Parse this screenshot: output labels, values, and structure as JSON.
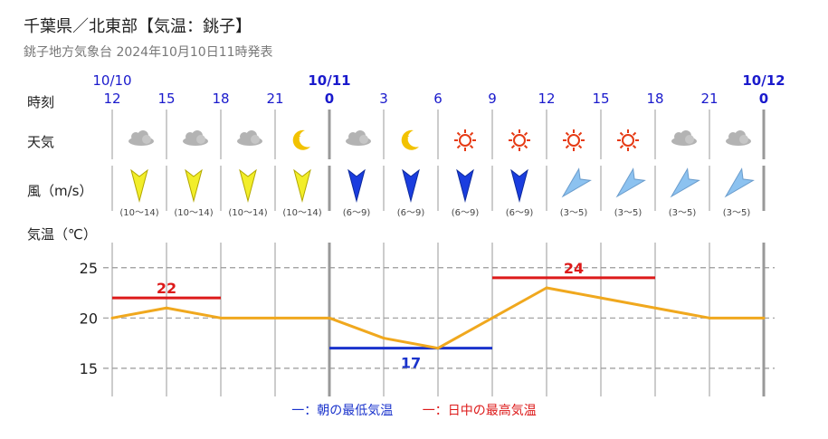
{
  "header": {
    "title": "千葉県／北東部【気温：銚子】",
    "subtitle": "銚子地方気象台 2024年10月10日11時発表"
  },
  "row_labels": {
    "time": "時刻",
    "weather": "天気",
    "wind": "風（m/s）",
    "temperature": "気温（℃）"
  },
  "dates": [
    {
      "label": "10/10",
      "bold": false,
      "slot": 0
    },
    {
      "label": "10/11",
      "bold": true,
      "slot": 4
    },
    {
      "label": "10/12",
      "bold": true,
      "slot": 12
    }
  ],
  "forecast": {
    "hours": [
      "12",
      "15",
      "18",
      "21",
      "0",
      "3",
      "6",
      "9",
      "12",
      "15",
      "18",
      "21",
      "0"
    ],
    "midnight_slots": [
      4,
      12
    ],
    "weather_icons": [
      "cloudy-icon",
      "cloudy-icon",
      "cloudy-icon",
      "clear-night-icon",
      "cloudy-icon",
      "clear-night-icon",
      "sunny-icon",
      "sunny-icon",
      "sunny-icon",
      "sunny-icon",
      "cloudy-icon",
      "cloudy-icon"
    ],
    "wind": [
      {
        "range": "(10〜14)",
        "direction": "north",
        "strength": 2
      },
      {
        "range": "(10〜14)",
        "direction": "north",
        "strength": 2
      },
      {
        "range": "(10〜14)",
        "direction": "north",
        "strength": 2
      },
      {
        "range": "(10〜14)",
        "direction": "north",
        "strength": 2
      },
      {
        "range": "(6〜9)",
        "direction": "north",
        "strength": 1
      },
      {
        "range": "(6〜9)",
        "direction": "north",
        "strength": 1
      },
      {
        "range": "(6〜9)",
        "direction": "north",
        "strength": 1
      },
      {
        "range": "(6〜9)",
        "direction": "north",
        "strength": 1
      },
      {
        "range": "(3〜5)",
        "direction": "northeast",
        "strength": 0
      },
      {
        "range": "(3〜5)",
        "direction": "northeast",
        "strength": 0
      },
      {
        "range": "(3〜5)",
        "direction": "northeast",
        "strength": 0
      },
      {
        "range": "(3〜5)",
        "direction": "northeast",
        "strength": 0
      }
    ]
  },
  "chart_data": {
    "type": "line",
    "x": [
      "12",
      "15",
      "18",
      "21",
      "0",
      "3",
      "6",
      "9",
      "12",
      "15",
      "18",
      "21",
      "0"
    ],
    "series": [
      {
        "values": [
          20,
          21,
          20,
          20,
          20,
          18,
          17,
          20,
          23,
          22,
          21,
          20,
          20
        ]
      }
    ],
    "min_temperature": {
      "value": 17,
      "label": "17",
      "from_slot": 4,
      "to_slot": 7
    },
    "max_temperatures": [
      {
        "value": 22,
        "label": "22",
        "from_slot": 0,
        "to_slot": 2
      },
      {
        "value": 24,
        "label": "24",
        "from_slot": 7,
        "to_slot": 10
      }
    ],
    "yticks": [
      "15",
      "20",
      "25"
    ],
    "ylim": [
      12.2,
      27.5
    ],
    "grid": true
  },
  "legend": {
    "min": "一：朝の最低気温",
    "max": "一：日中の最高気温"
  },
  "colors": {
    "temperature_line": "#f0a81e",
    "min_line": "#1a33cc",
    "max_line": "#dd1a1a",
    "date_text": "#1a1acc",
    "hour_text": "#1a1acc",
    "wind_strong": "#f2ee2a",
    "wind_medium": "#1a3ddf",
    "wind_weak": "#8cc2f0"
  }
}
